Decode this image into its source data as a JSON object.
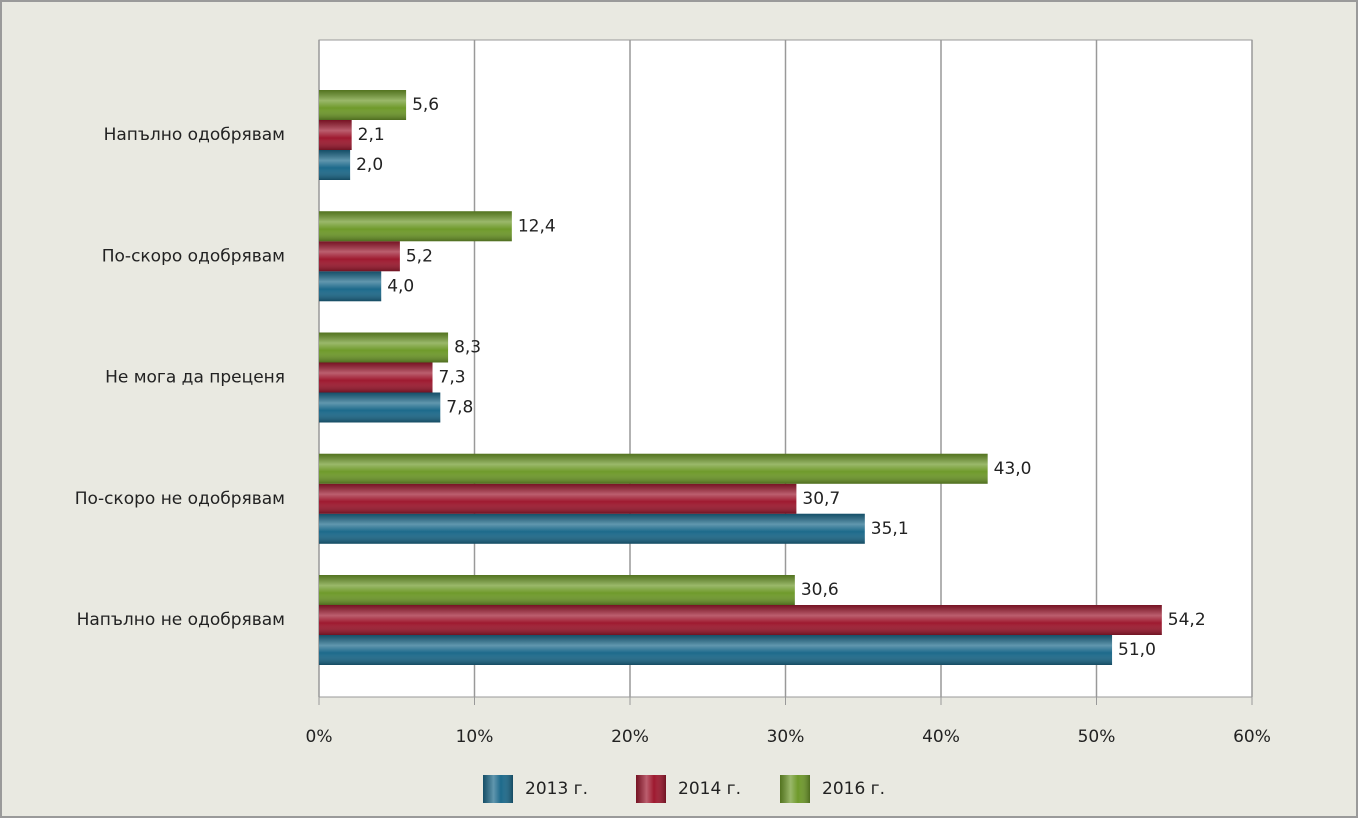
{
  "chart_data": {
    "type": "bar",
    "orientation": "horizontal",
    "categories": [
      "Напълно одобрявам",
      "По-скоро одобрявам",
      "Не мога да преценя",
      "По-скоро не одобрявам",
      "Напълно не одобрявам"
    ],
    "series": [
      {
        "name": "2013 г.",
        "color": "#1d6a8b",
        "values": [
          2.0,
          4.0,
          7.8,
          35.1,
          51.0
        ],
        "value_labels": [
          "2,0",
          "4,0",
          "7,8",
          "35,1",
          "51,0"
        ]
      },
      {
        "name": "2014 г.",
        "color": "#9e1a30",
        "values": [
          2.1,
          5.2,
          7.3,
          30.7,
          54.2
        ],
        "value_labels": [
          "2,1",
          "5,2",
          "7,3",
          "30,7",
          "54,2"
        ]
      },
      {
        "name": "2016 г.",
        "color": "#6f9a2b",
        "values": [
          5.6,
          12.4,
          8.3,
          43.0,
          30.6
        ],
        "value_labels": [
          "5,6",
          "12,4",
          "8,3",
          "43,0",
          "30,6"
        ]
      }
    ],
    "xlim": [
      0,
      60
    ],
    "xticks": [
      {
        "value": 0,
        "label": "0%"
      },
      {
        "value": 10,
        "label": "10%"
      },
      {
        "value": 20,
        "label": "20%"
      },
      {
        "value": 30,
        "label": "30%"
      },
      {
        "value": 40,
        "label": "40%"
      },
      {
        "value": 50,
        "label": "50%"
      },
      {
        "value": 60,
        "label": "60%"
      }
    ],
    "grid": true,
    "legend": "bottom"
  }
}
